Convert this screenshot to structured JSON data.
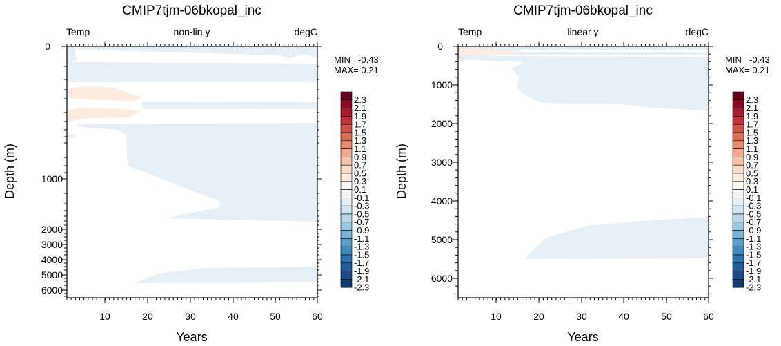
{
  "chart_data": [
    {
      "type": "contour",
      "title": "CMIP7tjm-06bkopal_inc",
      "left_label": "Temp",
      "center_label": "non-lin y",
      "right_label": "degC",
      "xlabel": "Years",
      "ylabel": "Depth (m)",
      "xlim": [
        1,
        60
      ],
      "ylim": [
        6500,
        0
      ],
      "y_scale": "non-linear",
      "x_ticks": [
        "10",
        "20",
        "30",
        "40",
        "50",
        "60"
      ],
      "y_ticks": [
        "0",
        "1000",
        "2000",
        "3000",
        "4000",
        "5000",
        "6000"
      ],
      "min_text": "MIN= -0.43",
      "max_text": "MAX=  0.21",
      "contour_levels": [
        "2.3",
        "2.1",
        "1.9",
        "1.7",
        "1.5",
        "1.3",
        "1.1",
        "0.9",
        "0.7",
        "0.5",
        "0.3",
        "0.1",
        "-0.1",
        "-0.3",
        "-0.5",
        "-0.7",
        "-0.9",
        "-1.1",
        "-1.3",
        "-1.5",
        "-1.7",
        "-1.9",
        "-2.1",
        "-2.3"
      ],
      "colors": [
        "#67001f",
        "#8a0a26",
        "#a81a2e",
        "#bf333a",
        "#cf5347",
        "#db6f58",
        "#e68b6e",
        "#f0a889",
        "#f6c3a8",
        "#fadbc8",
        "#fdebdf",
        "#fdf5ef",
        "#f2f6f9",
        "#e5eff5",
        "#d2e5f0",
        "#b9d7e9",
        "#9ac8e0",
        "#7ab4d5",
        "#5a9fcb",
        "#418abe",
        "#2e73ae",
        "#225d9b",
        "#1b4a87",
        "#123a6d"
      ]
    },
    {
      "type": "contour",
      "title": "CMIP7tjm-06bkopal_inc",
      "left_label": "Temp",
      "center_label": "linear y",
      "right_label": "degC",
      "xlabel": "Years",
      "ylabel": "Depth (m)",
      "xlim": [
        1,
        60
      ],
      "ylim": [
        6500,
        0
      ],
      "y_scale": "linear",
      "x_ticks": [
        "10",
        "20",
        "30",
        "40",
        "50",
        "60"
      ],
      "y_ticks": [
        "0",
        "1000",
        "2000",
        "3000",
        "4000",
        "5000",
        "6000"
      ],
      "min_text": "MIN= -0.43",
      "max_text": "MAX=  0.21",
      "contour_levels": [
        "2.3",
        "2.1",
        "1.9",
        "1.7",
        "1.5",
        "1.3",
        "1.1",
        "0.9",
        "0.7",
        "0.5",
        "0.3",
        "0.1",
        "-0.1",
        "-0.3",
        "-0.5",
        "-0.7",
        "-0.9",
        "-1.1",
        "-1.3",
        "-1.5",
        "-1.7",
        "-1.9",
        "-2.1",
        "-2.3"
      ],
      "colors": [
        "#67001f",
        "#8a0a26",
        "#a81a2e",
        "#bf333a",
        "#cf5347",
        "#db6f58",
        "#e68b6e",
        "#f0a889",
        "#f6c3a8",
        "#fadbc8",
        "#fdebdf",
        "#fdf5ef",
        "#f2f6f9",
        "#e5eff5",
        "#d2e5f0",
        "#b9d7e9",
        "#9ac8e0",
        "#7ab4d5",
        "#5a9fcb",
        "#418abe",
        "#2e73ae",
        "#225d9b",
        "#1b4a87",
        "#123a6d"
      ]
    }
  ],
  "field_colors": {
    "negative": "#e5eff5",
    "positive": "#fdebdf"
  }
}
